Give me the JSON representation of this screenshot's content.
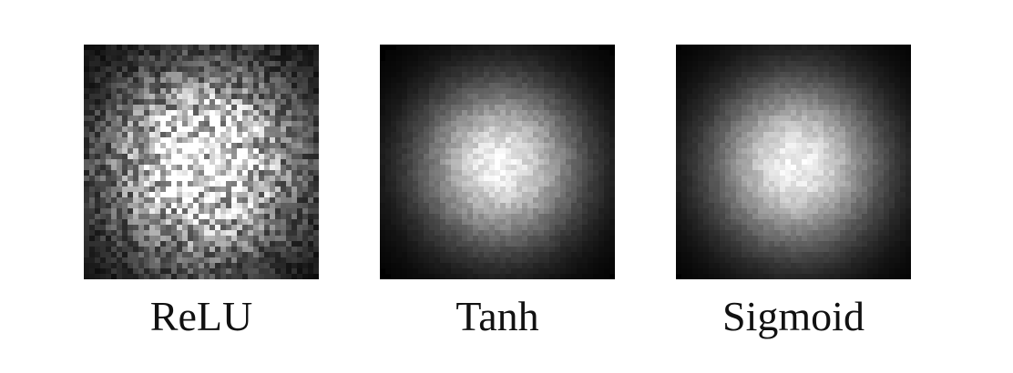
{
  "figure": {
    "panels": [
      {
        "caption": "ReLU",
        "spread": 0.3,
        "noise": 0.55,
        "peak": 1.0,
        "seed": 11
      },
      {
        "caption": "Tanh",
        "spread": 0.24,
        "noise": 0.1,
        "peak": 0.95,
        "seed": 23
      },
      {
        "caption": "Sigmoid",
        "spread": 0.25,
        "noise": 0.08,
        "peak": 0.95,
        "seed": 37
      }
    ],
    "colors": {
      "background": "#000000",
      "foreground": "#ffffff",
      "caption": "#111111"
    }
  }
}
